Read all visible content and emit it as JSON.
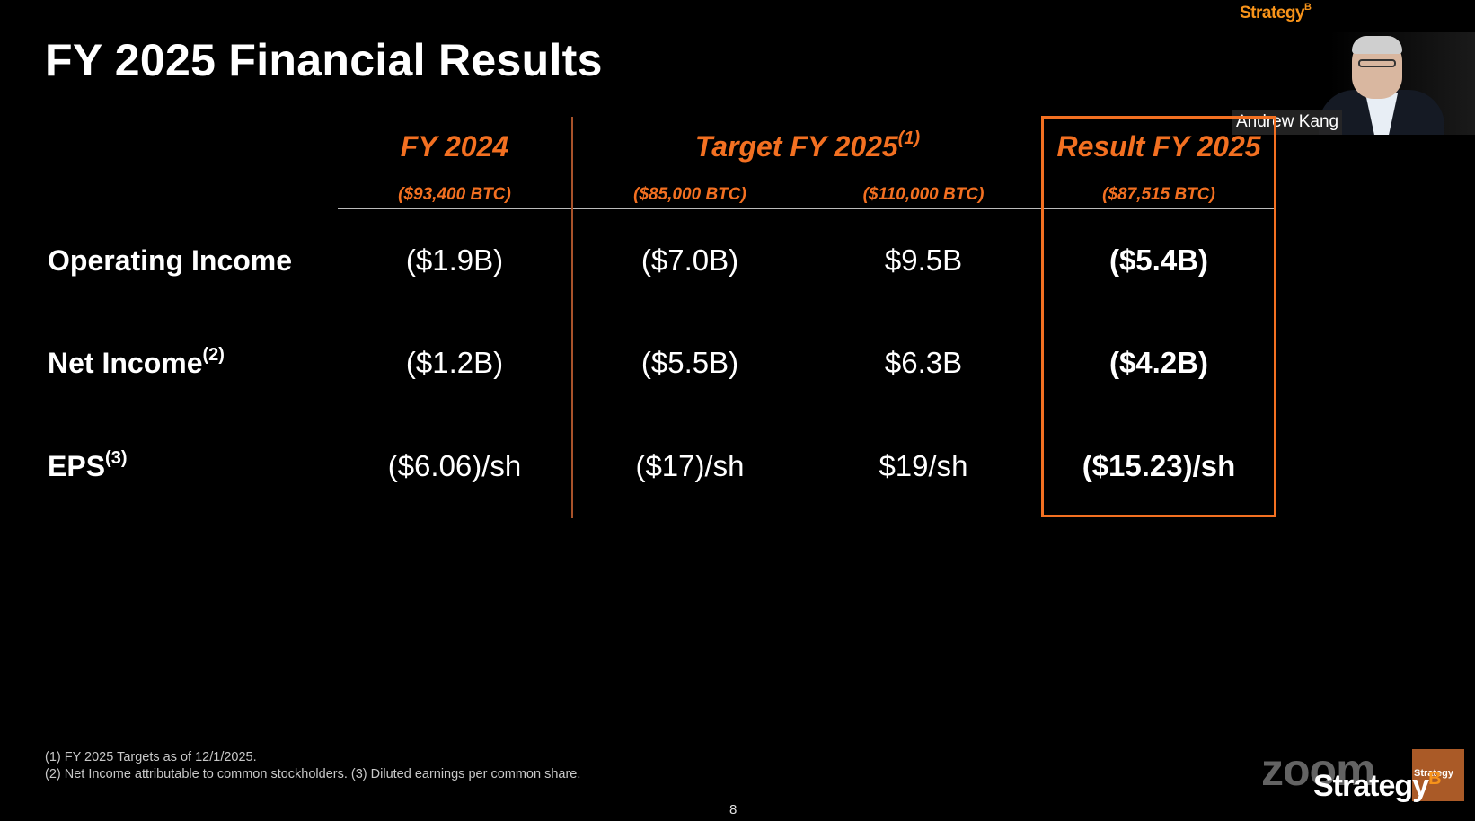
{
  "slide": {
    "title": "FY 2025 Financial Results",
    "brand": "Strategy",
    "brand_mark": "B",
    "page_number": "8"
  },
  "presenter": {
    "name": "Andrew Kang"
  },
  "table": {
    "columns": [
      {
        "header": "FY 2024",
        "sup": "",
        "sub": "($93,400 BTC)"
      },
      {
        "header": "Target FY 2025",
        "sup": "(1)",
        "sub_left": "($85,000 BTC)",
        "sub_right": "($110,000 BTC)"
      },
      {
        "header": "Result FY 2025",
        "sup": "",
        "sub": "($87,515 BTC)"
      }
    ],
    "rows": [
      {
        "label": "Operating Income",
        "sup": "",
        "values": [
          "($1.9B)",
          "($7.0B)",
          "$9.5B",
          "($5.4B)"
        ]
      },
      {
        "label": "Net Income",
        "sup": "(2)",
        "values": [
          "($1.2B)",
          "($5.5B)",
          "$6.3B",
          "($4.2B)"
        ]
      },
      {
        "label": "EPS",
        "sup": "(3)",
        "values": [
          "($6.06)/sh",
          "($17)/sh",
          "$19/sh",
          "($15.23)/sh"
        ]
      }
    ]
  },
  "footnotes": [
    "(1) FY 2025 Targets as of 12/1/2025.",
    "(2) Net Income attributable to common stockholders. (3) Diluted earnings per common share."
  ],
  "watermarks": {
    "zoom": "zoom",
    "strategy": "Strategy",
    "strategy_mark": "B",
    "corner": "Strategy"
  },
  "colors": {
    "accent": "#f37021",
    "background": "#000000",
    "text": "#ffffff"
  }
}
